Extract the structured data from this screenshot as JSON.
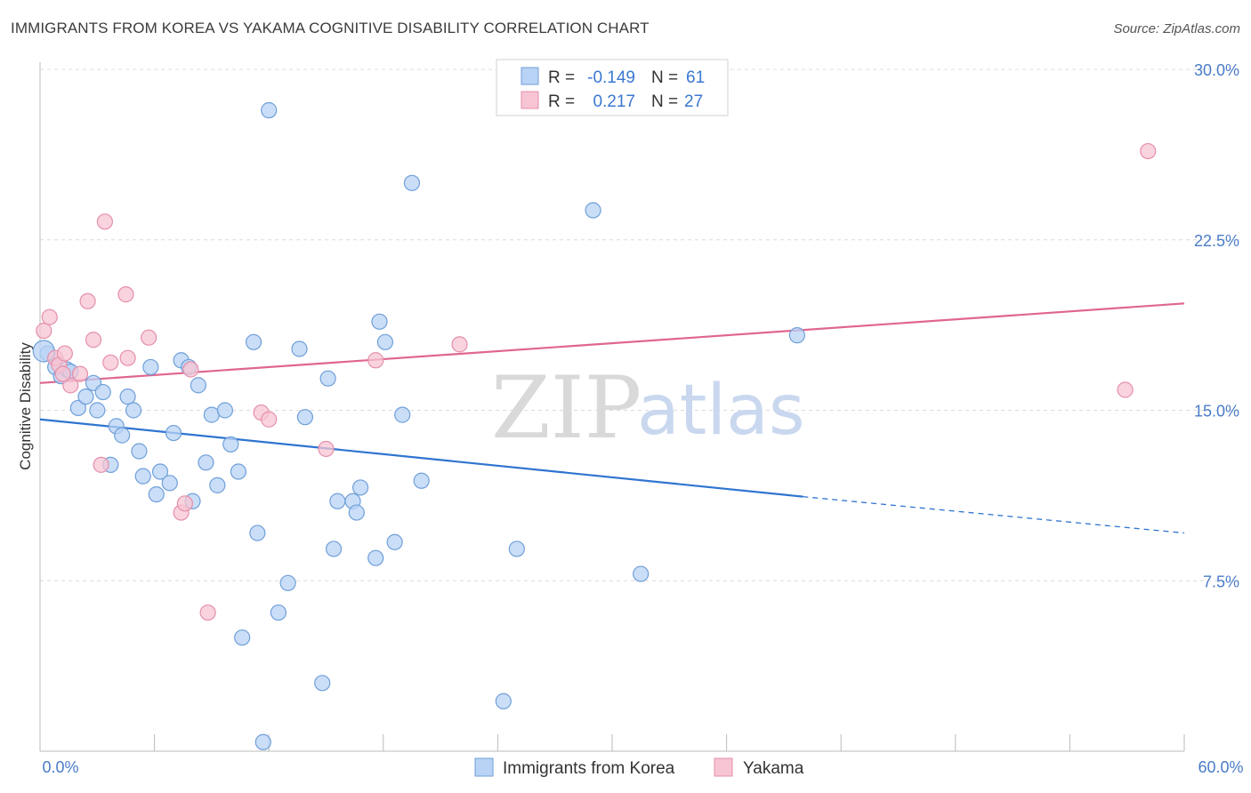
{
  "title": "IMMIGRANTS FROM KOREA VS YAKAMA COGNITIVE DISABILITY CORRELATION CHART",
  "source": "Source: ZipAtlas.com",
  "watermark": {
    "zip": "ZIP",
    "atlas": "atlas"
  },
  "colors": {
    "blue_fill": "#b8d3f5",
    "blue_stroke": "#6f9fd8",
    "blue_line": "#2f74d0",
    "pink_fill": "#f7c4d3",
    "pink_stroke": "#e58fab",
    "pink_line": "#e0668f",
    "grid": "#dcdcdc",
    "axis_text": "#4a7cc8"
  },
  "legend": {
    "rows": [
      {
        "r_label": "R =",
        "r_value": "-0.149",
        "n_label": "N =",
        "n_value": "61"
      },
      {
        "r_label": "R =",
        "r_value": "0.217",
        "n_label": "N =",
        "n_value": "27"
      }
    ]
  },
  "chart_data": {
    "type": "scatter",
    "title": "IMMIGRANTS FROM KOREA VS YAKAMA COGNITIVE DISABILITY CORRELATION CHART",
    "xlabel": "",
    "ylabel": "Cognitive Disability",
    "xlim": [
      0,
      60
    ],
    "ylim": [
      0,
      30
    ],
    "x_tick_labels": [
      "0.0%",
      "60.0%"
    ],
    "y_ticks": [
      7.5,
      15.0,
      22.5,
      30.0
    ],
    "y_tick_labels": [
      "7.5%",
      "15.0%",
      "22.5%",
      "30.0%"
    ],
    "series": [
      {
        "name": "Immigrants from Korea",
        "color": "blue",
        "trend": {
          "x0": 0,
          "y0": 14.6,
          "x1": 40.0,
          "y1": 11.2,
          "dash_to_x": 60,
          "dash_to_y": 9.6
        },
        "points": [
          [
            0.4,
            17.5
          ],
          [
            0.8,
            16.9
          ],
          [
            1.1,
            16.5
          ],
          [
            1.4,
            16.8
          ],
          [
            1.6,
            16.7
          ],
          [
            2.0,
            15.1
          ],
          [
            2.4,
            15.6
          ],
          [
            2.8,
            16.2
          ],
          [
            3.0,
            15.0
          ],
          [
            3.3,
            15.8
          ],
          [
            3.7,
            12.6
          ],
          [
            4.0,
            14.3
          ],
          [
            4.3,
            13.9
          ],
          [
            4.6,
            15.6
          ],
          [
            4.9,
            15.0
          ],
          [
            5.2,
            13.2
          ],
          [
            5.4,
            12.1
          ],
          [
            5.8,
            16.9
          ],
          [
            6.1,
            11.3
          ],
          [
            6.3,
            12.3
          ],
          [
            6.8,
            11.8
          ],
          [
            7.0,
            14.0
          ],
          [
            7.4,
            17.2
          ],
          [
            7.8,
            16.9
          ],
          [
            8.0,
            11.0
          ],
          [
            8.3,
            16.1
          ],
          [
            8.7,
            12.7
          ],
          [
            9.0,
            14.8
          ],
          [
            9.3,
            11.7
          ],
          [
            9.7,
            15.0
          ],
          [
            10.0,
            13.5
          ],
          [
            10.4,
            12.3
          ],
          [
            10.6,
            5.0
          ],
          [
            11.2,
            18.0
          ],
          [
            11.4,
            9.6
          ],
          [
            11.7,
            0.4
          ],
          [
            12.0,
            28.2
          ],
          [
            12.5,
            6.1
          ],
          [
            13.0,
            7.4
          ],
          [
            13.6,
            17.7
          ],
          [
            13.9,
            14.7
          ],
          [
            14.8,
            3.0
          ],
          [
            15.1,
            16.4
          ],
          [
            15.4,
            8.9
          ],
          [
            15.6,
            11.0
          ],
          [
            16.4,
            11.0
          ],
          [
            16.6,
            10.5
          ],
          [
            16.8,
            11.6
          ],
          [
            17.6,
            8.5
          ],
          [
            17.8,
            18.9
          ],
          [
            18.1,
            18.0
          ],
          [
            18.6,
            9.2
          ],
          [
            19.0,
            14.8
          ],
          [
            19.5,
            25.0
          ],
          [
            20.0,
            11.9
          ],
          [
            24.3,
            2.2
          ],
          [
            25.0,
            8.9
          ],
          [
            29.0,
            23.8
          ],
          [
            31.5,
            7.8
          ],
          [
            39.7,
            18.3
          ],
          [
            0.2,
            17.6
          ]
        ]
      },
      {
        "name": "Yakama",
        "color": "pink",
        "trend": {
          "x0": 0,
          "y0": 16.2,
          "x1": 60,
          "y1": 19.7
        },
        "points": [
          [
            0.2,
            18.5
          ],
          [
            0.5,
            19.1
          ],
          [
            0.8,
            17.3
          ],
          [
            1.0,
            17.0
          ],
          [
            1.3,
            17.5
          ],
          [
            1.6,
            16.1
          ],
          [
            2.1,
            16.6
          ],
          [
            2.5,
            19.8
          ],
          [
            2.8,
            18.1
          ],
          [
            3.2,
            12.6
          ],
          [
            3.4,
            23.3
          ],
          [
            3.7,
            17.1
          ],
          [
            4.5,
            20.1
          ],
          [
            4.6,
            17.3
          ],
          [
            5.7,
            18.2
          ],
          [
            7.4,
            10.5
          ],
          [
            7.6,
            10.9
          ],
          [
            7.9,
            16.8
          ],
          [
            8.8,
            6.1
          ],
          [
            11.6,
            14.9
          ],
          [
            12.0,
            14.6
          ],
          [
            15.0,
            13.3
          ],
          [
            17.6,
            17.2
          ],
          [
            22.0,
            17.9
          ],
          [
            56.9,
            15.9
          ],
          [
            58.1,
            26.4
          ],
          [
            1.2,
            16.6
          ]
        ]
      }
    ]
  },
  "bottom_legend": [
    {
      "label": "Immigrants from Korea",
      "color": "blue"
    },
    {
      "label": "Yakama",
      "color": "pink"
    }
  ]
}
